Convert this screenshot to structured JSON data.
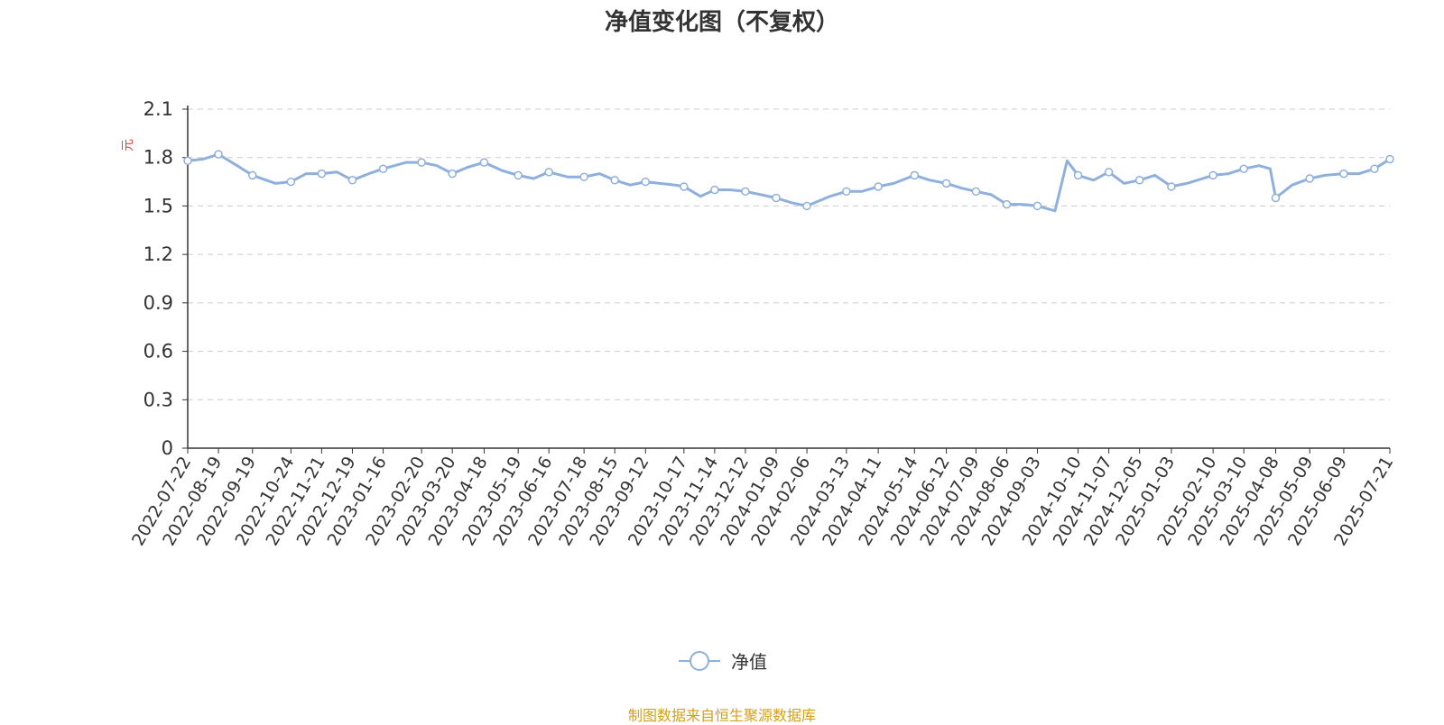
{
  "title": "净值变化图（不复权）",
  "source_note": "制图数据来自恒生聚源数据库",
  "colors": {
    "line": "#8fb0dc",
    "unit_label": "#e8403a",
    "axis": "#333333",
    "grid": "#cccccc",
    "source": "#d4a017"
  },
  "chart_data": {
    "type": "line",
    "title": "净值变化图（不复权）",
    "ylabel": "元",
    "ylim": [
      0,
      2.1
    ],
    "yticks": [
      "0",
      "0.3",
      "0.6",
      "0.9",
      "1.2",
      "1.5",
      "1.8",
      "2.1"
    ],
    "y_tick_values": [
      0,
      0.3,
      0.6,
      0.9,
      1.2,
      1.5,
      1.8,
      2.1
    ],
    "grid": true,
    "legend_position": "bottom",
    "x_tick_labels": [
      "2022-07-22",
      "2022-08-19",
      "2022-09-19",
      "2022-10-24",
      "2022-11-21",
      "2022-12-19",
      "2023-01-16",
      "2023-02-20",
      "2023-03-20",
      "2023-04-18",
      "2023-05-19",
      "2023-06-16",
      "2023-07-18",
      "2023-08-15",
      "2023-09-12",
      "2023-10-17",
      "2023-11-14",
      "2023-12-12",
      "2024-01-09",
      "2024-02-06",
      "2024-03-13",
      "2024-04-11",
      "2024-05-14",
      "2024-06-12",
      "2024-07-09",
      "2024-08-06",
      "2024-09-03",
      "2024-10-10",
      "2024-11-07",
      "2024-12-05",
      "2025-01-03",
      "2025-02-10",
      "2025-03-10",
      "2025-04-08",
      "2025-05-09",
      "2025-06-09",
      "2025-07-21"
    ],
    "series": [
      {
        "name": "净值",
        "x": [
          "2022-07-22",
          "2022-08-05",
          "2022-08-19",
          "2022-09-05",
          "2022-09-19",
          "2022-10-10",
          "2022-10-24",
          "2022-11-07",
          "2022-11-21",
          "2022-12-05",
          "2022-12-19",
          "2023-01-03",
          "2023-01-16",
          "2023-02-06",
          "2023-02-20",
          "2023-03-06",
          "2023-03-20",
          "2023-04-03",
          "2023-04-18",
          "2023-05-04",
          "2023-05-19",
          "2023-06-02",
          "2023-06-16",
          "2023-07-03",
          "2023-07-18",
          "2023-08-01",
          "2023-08-15",
          "2023-08-29",
          "2023-09-12",
          "2023-10-09",
          "2023-10-17",
          "2023-11-01",
          "2023-11-14",
          "2023-11-28",
          "2023-12-12",
          "2023-12-26",
          "2024-01-09",
          "2024-01-23",
          "2024-02-06",
          "2024-02-27",
          "2024-03-13",
          "2024-03-27",
          "2024-04-11",
          "2024-04-25",
          "2024-05-14",
          "2024-05-28",
          "2024-06-12",
          "2024-06-26",
          "2024-07-09",
          "2024-07-23",
          "2024-08-06",
          "2024-08-20",
          "2024-09-03",
          "2024-09-19",
          "2024-09-30",
          "2024-10-10",
          "2024-10-24",
          "2024-11-07",
          "2024-11-21",
          "2024-12-05",
          "2024-12-19",
          "2025-01-03",
          "2025-01-17",
          "2025-02-10",
          "2025-02-24",
          "2025-03-10",
          "2025-03-24",
          "2025-04-03",
          "2025-04-08",
          "2025-04-23",
          "2025-05-09",
          "2025-05-23",
          "2025-06-09",
          "2025-06-23",
          "2025-07-07",
          "2025-07-21"
        ],
        "values": [
          1.78,
          1.79,
          1.82,
          1.75,
          1.69,
          1.64,
          1.65,
          1.7,
          1.7,
          1.71,
          1.66,
          1.7,
          1.73,
          1.77,
          1.77,
          1.75,
          1.7,
          1.74,
          1.77,
          1.72,
          1.69,
          1.67,
          1.71,
          1.68,
          1.68,
          1.7,
          1.66,
          1.63,
          1.65,
          1.63,
          1.62,
          1.56,
          1.6,
          1.6,
          1.59,
          1.57,
          1.55,
          1.52,
          1.5,
          1.56,
          1.59,
          1.59,
          1.62,
          1.64,
          1.69,
          1.66,
          1.64,
          1.61,
          1.59,
          1.57,
          1.51,
          1.51,
          1.5,
          1.47,
          1.78,
          1.69,
          1.66,
          1.71,
          1.64,
          1.66,
          1.69,
          1.62,
          1.64,
          1.69,
          1.7,
          1.73,
          1.75,
          1.73,
          1.55,
          1.63,
          1.67,
          1.69,
          1.7,
          1.7,
          1.73,
          1.79
        ],
        "marker_indices": [
          0,
          2,
          4,
          6,
          8,
          10,
          12,
          14,
          16,
          18,
          20,
          22,
          24,
          26,
          28,
          30,
          32,
          34,
          36,
          38,
          40,
          42,
          44,
          46,
          48,
          50,
          52,
          55,
          57,
          59,
          61,
          63,
          65,
          68,
          70,
          72,
          74,
          75
        ]
      }
    ]
  }
}
